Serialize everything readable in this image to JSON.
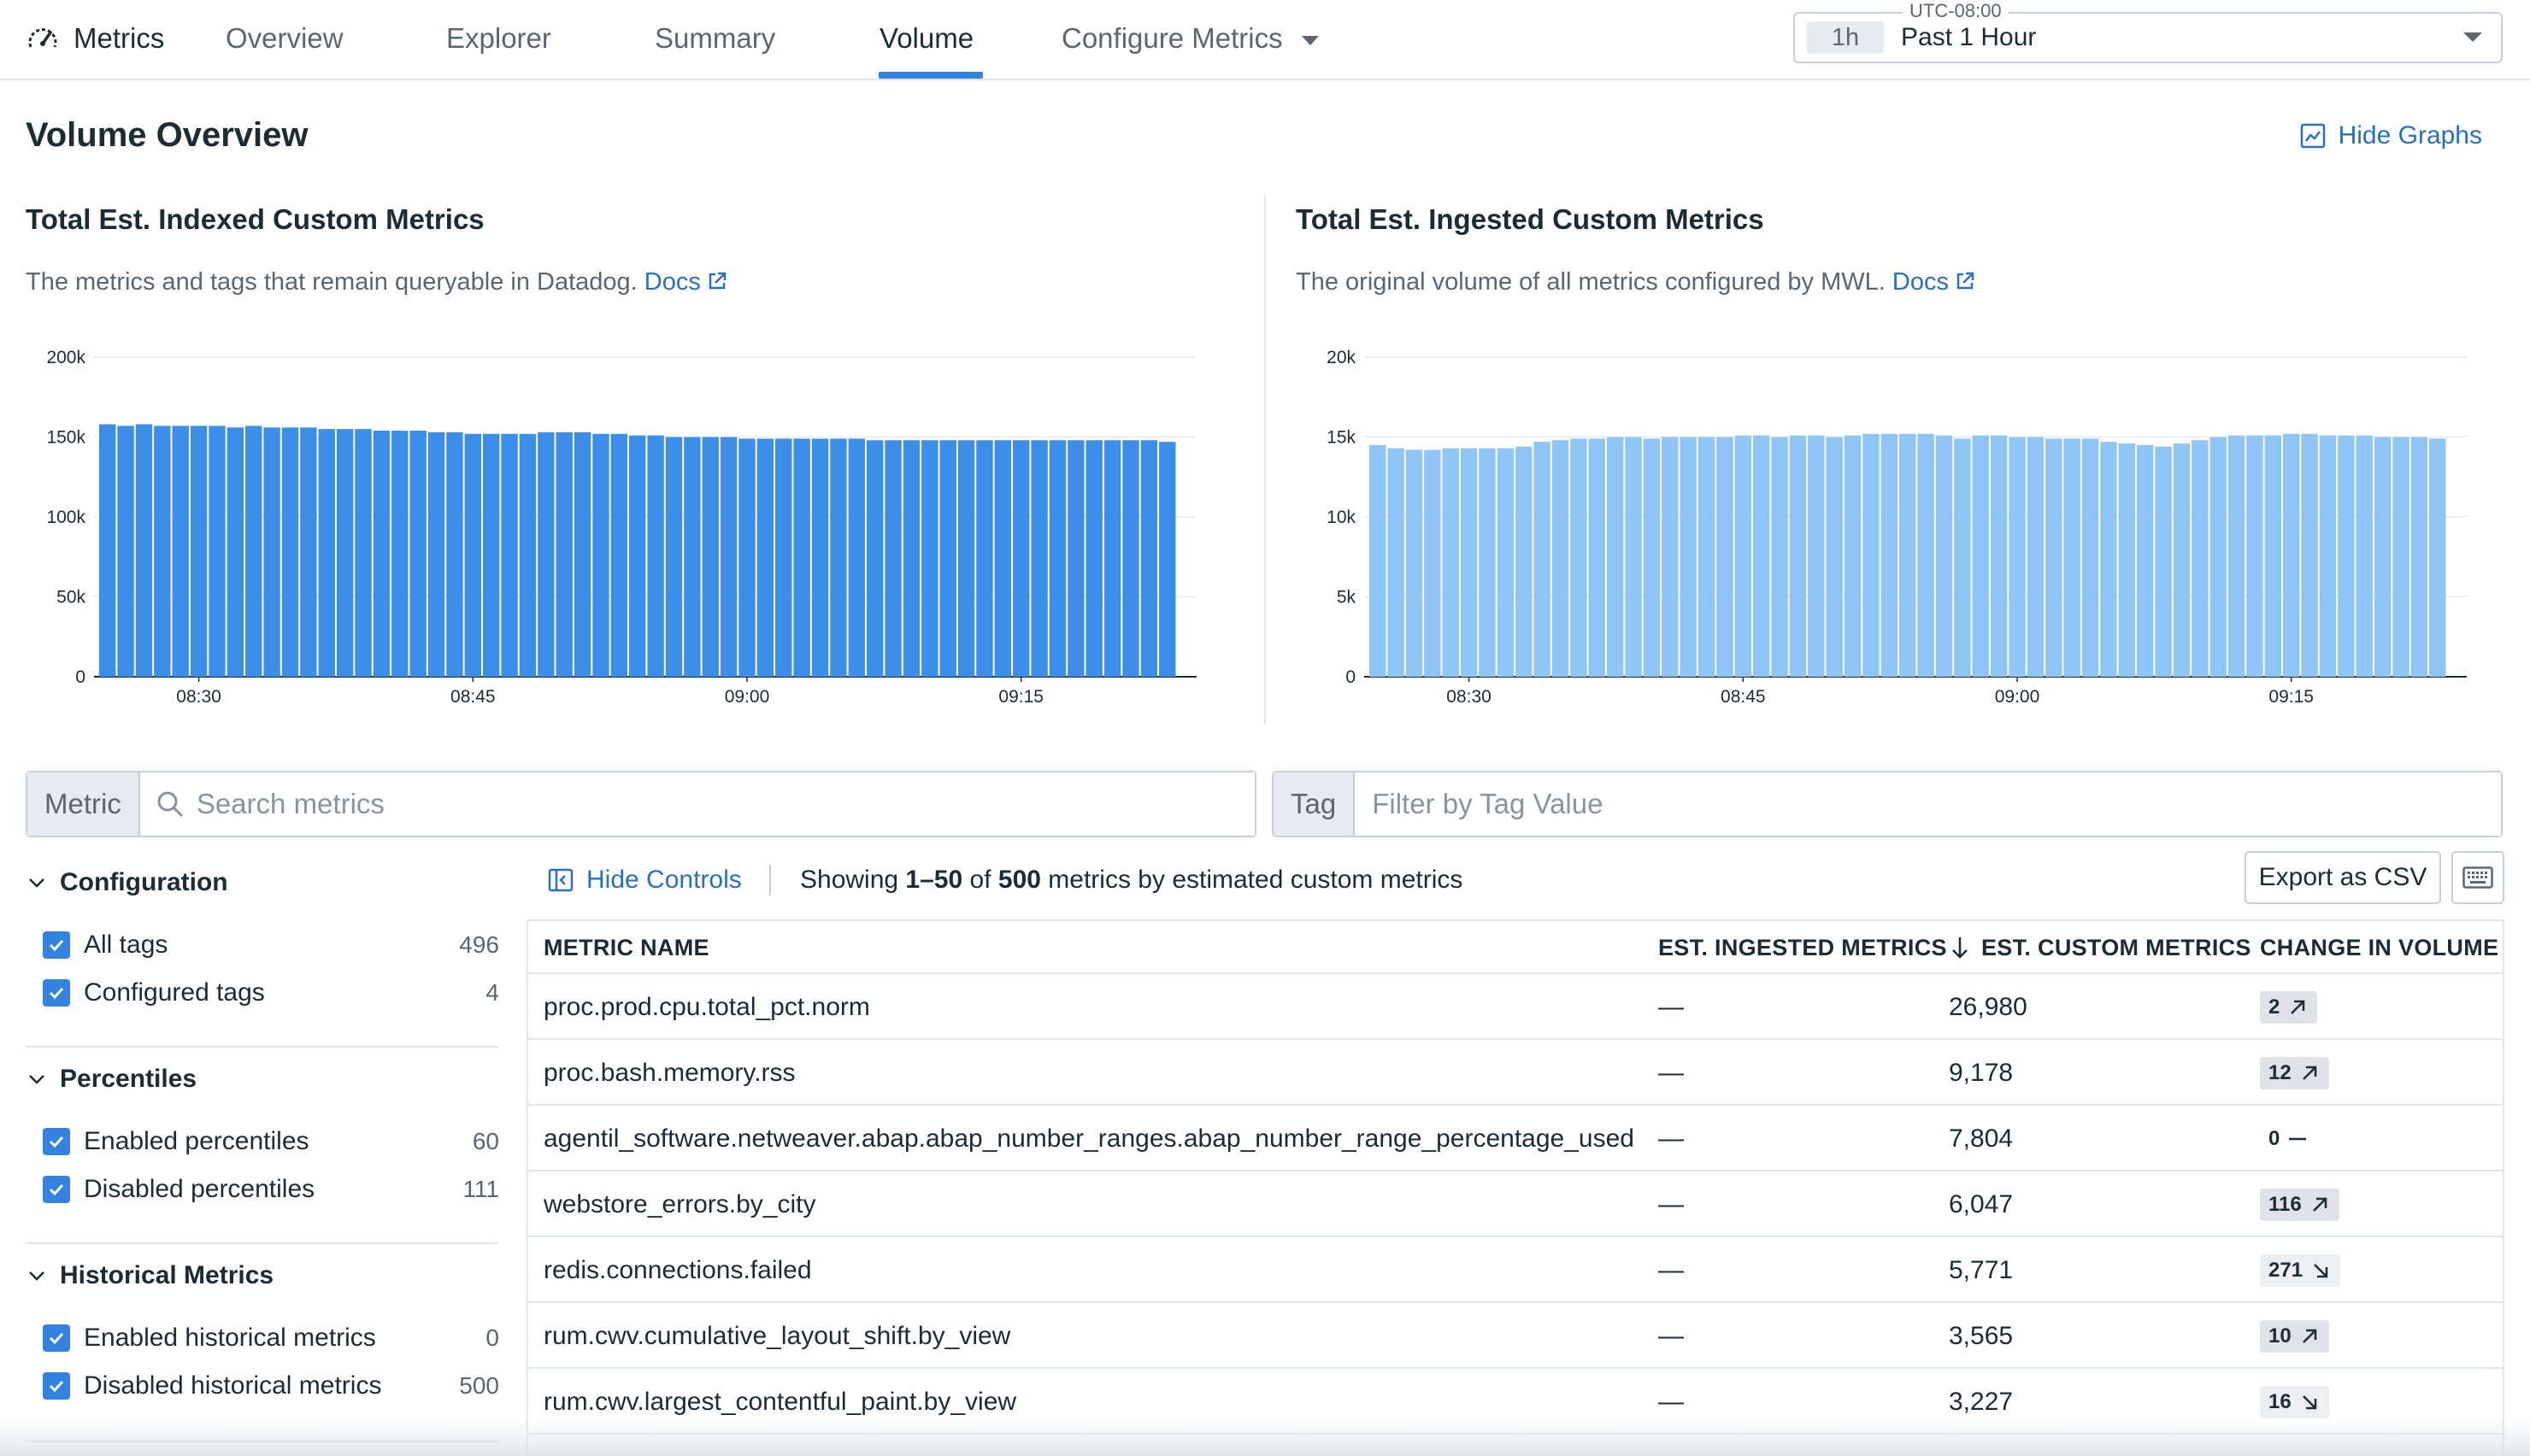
{
  "nav": {
    "brand": "Metrics",
    "tabs": [
      {
        "label": "Overview"
      },
      {
        "label": "Explorer"
      },
      {
        "label": "Summary"
      },
      {
        "label": "Volume"
      },
      {
        "label": "Configure Metrics"
      }
    ],
    "active_tab": "Volume",
    "timezone": "UTC-08:00",
    "time_pill": "1h",
    "time_range": "Past 1 Hour"
  },
  "volume": {
    "title": "Volume Overview",
    "hide_graphs": "Hide Graphs"
  },
  "charts": {
    "indexed": {
      "title": "Total Est. Indexed Custom Metrics",
      "description": "The metrics and tags that remain queryable in Datadog.",
      "docs": "Docs"
    },
    "ingested": {
      "title": "Total Est. Ingested Custom Metrics",
      "description": "The original volume of all metrics configured by MWL.",
      "docs": "Docs"
    }
  },
  "chart_data": [
    {
      "type": "bar",
      "title": "Total Est. Indexed Custom Metrics",
      "ylim": [
        0,
        200000
      ],
      "yticks": [
        "0",
        "50k",
        "100k",
        "150k",
        "200k"
      ],
      "xticks": [
        "08:30",
        "08:45",
        "09:00",
        "09:15"
      ],
      "color": "#3d8ee8",
      "values": [
        158000,
        157000,
        158000,
        157000,
        157000,
        157000,
        157000,
        156000,
        157000,
        156000,
        156000,
        156000,
        155000,
        155000,
        155000,
        154000,
        154000,
        154000,
        153000,
        153000,
        152000,
        152000,
        152000,
        152000,
        153000,
        153000,
        153000,
        152000,
        152000,
        151000,
        151000,
        150000,
        150000,
        150000,
        150000,
        149000,
        149000,
        149000,
        149000,
        149000,
        149000,
        149000,
        148000,
        148000,
        148000,
        148000,
        148000,
        148000,
        148000,
        148000,
        148000,
        148000,
        148000,
        148000,
        148000,
        148000,
        148000,
        148000,
        147000
      ]
    },
    {
      "type": "bar",
      "title": "Total Est. Ingested Custom Metrics",
      "ylim": [
        0,
        20000
      ],
      "yticks": [
        "0",
        "5k",
        "10k",
        "15k",
        "20k"
      ],
      "xticks": [
        "08:30",
        "08:45",
        "09:00",
        "09:15"
      ],
      "color": "#8fc4f7",
      "values": [
        14500,
        14300,
        14200,
        14200,
        14300,
        14300,
        14300,
        14300,
        14400,
        14700,
        14800,
        14900,
        14900,
        15000,
        15000,
        14900,
        15000,
        15000,
        15000,
        15000,
        15100,
        15100,
        15000,
        15100,
        15100,
        15000,
        15100,
        15200,
        15200,
        15200,
        15200,
        15100,
        14900,
        15100,
        15100,
        15000,
        15000,
        14900,
        14900,
        14900,
        14700,
        14600,
        14500,
        14400,
        14600,
        14800,
        15000,
        15100,
        15100,
        15100,
        15200,
        15200,
        15100,
        15100,
        15100,
        15000,
        15000,
        15000,
        14900
      ]
    }
  ],
  "search": {
    "metric_prefix": "Metric",
    "metric_placeholder": "Search metrics",
    "tag_prefix": "Tag",
    "tag_placeholder": "Filter by Tag Value"
  },
  "filters": [
    {
      "title": "Configuration",
      "items": [
        {
          "label": "All tags",
          "count": "496"
        },
        {
          "label": "Configured tags",
          "count": "4"
        }
      ]
    },
    {
      "title": "Percentiles",
      "items": [
        {
          "label": "Enabled percentiles",
          "count": "60"
        },
        {
          "label": "Disabled percentiles",
          "count": "111"
        }
      ]
    },
    {
      "title": "Historical Metrics",
      "items": [
        {
          "label": "Enabled historical metrics",
          "count": "0"
        },
        {
          "label": "Disabled historical metrics",
          "count": "500"
        }
      ]
    }
  ],
  "controls": {
    "hide_controls": "Hide Controls",
    "showing_prefix": "Showing",
    "showing_range": "1–50",
    "showing_of": "of",
    "showing_total": "500",
    "showing_suffix": "metrics by estimated custom metrics",
    "export": "Export as CSV"
  },
  "table": {
    "headers": {
      "metric_name": "METRIC NAME",
      "ingested": "EST. INGESTED METRICS",
      "custom": "EST. CUSTOM METRICS",
      "change": "CHANGE IN VOLUME"
    },
    "rows": [
      {
        "name": "proc.prod.cpu.total_pct.norm",
        "ingested": "—",
        "custom": "26,980",
        "change": "2",
        "trend": "up"
      },
      {
        "name": "proc.bash.memory.rss",
        "ingested": "—",
        "custom": "9,178",
        "change": "12",
        "trend": "up"
      },
      {
        "name": "agentil_software.netweaver.abap.abap_number_ranges.abap_number_range_percentage_used",
        "ingested": "—",
        "custom": "7,804",
        "change": "0",
        "trend": "flat"
      },
      {
        "name": "webstore_errors.by_city",
        "ingested": "—",
        "custom": "6,047",
        "change": "116",
        "trend": "up"
      },
      {
        "name": "redis.connections.failed",
        "ingested": "—",
        "custom": "5,771",
        "change": "271",
        "trend": "down"
      },
      {
        "name": "rum.cwv.cumulative_layout_shift.by_view",
        "ingested": "—",
        "custom": "3,565",
        "change": "10",
        "trend": "up"
      },
      {
        "name": "rum.cwv.largest_contentful_paint.by_view",
        "ingested": "—",
        "custom": "3,227",
        "change": "16",
        "trend": "down"
      }
    ]
  }
}
